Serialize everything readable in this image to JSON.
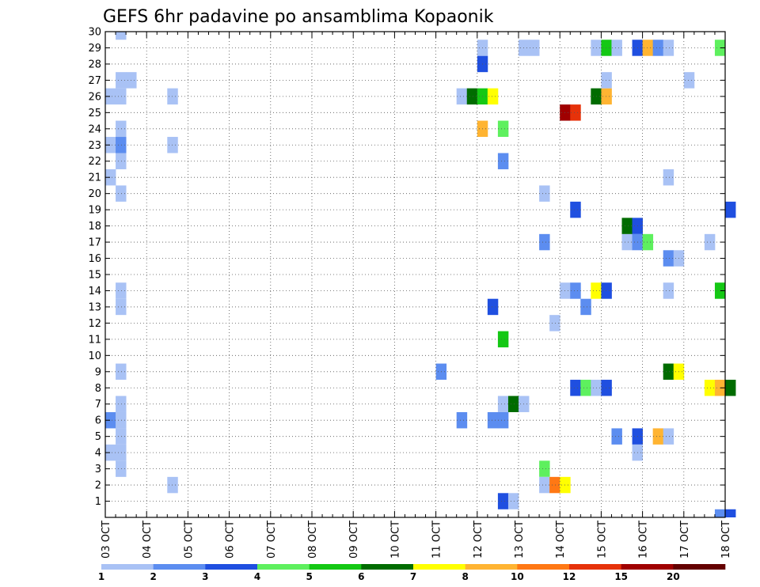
{
  "chart_data": {
    "type": "heatmap",
    "title": "GEFS 6hr padavine po ansamblima Kopaonik",
    "xlabel": "",
    "ylabel": "",
    "x_ticks": [
      "03 OCT",
      "04 OCT",
      "05 OCT",
      "06 OCT",
      "07 OCT",
      "08 OCT",
      "09 OCT",
      "10 OCT",
      "11 OCT",
      "12 OCT",
      "13 OCT",
      "14 OCT",
      "15 OCT",
      "16 OCT",
      "17 OCT",
      "18 OCT"
    ],
    "y_ticks": [
      1,
      2,
      3,
      4,
      5,
      6,
      7,
      8,
      9,
      10,
      11,
      12,
      13,
      14,
      15,
      16,
      17,
      18,
      19,
      20,
      21,
      22,
      23,
      24,
      25,
      26,
      27,
      28,
      29,
      30
    ],
    "time_steps_per_day": 4,
    "grid": true,
    "colorbar": {
      "labels": [
        "1",
        "2",
        "3",
        "4",
        "5",
        "6",
        "7",
        "8",
        "10",
        "12",
        "15",
        "20"
      ],
      "colors": [
        "#a9c2f5",
        "#5c8df0",
        "#1f4fe0",
        "#5ef05e",
        "#14c814",
        "#006c00",
        "#ffff00",
        "#ffb432",
        "#ff7814",
        "#e6320a",
        "#a00000",
        "#640000"
      ]
    },
    "cells": [
      {
        "t": 1,
        "m": 30,
        "v": 1
      },
      {
        "t": 1,
        "m": 27,
        "v": 1
      },
      {
        "t": 2,
        "m": 27,
        "v": 1
      },
      {
        "t": 0,
        "m": 26,
        "v": 1
      },
      {
        "t": 1,
        "m": 26,
        "v": 1
      },
      {
        "t": 1,
        "m": 24,
        "v": 1
      },
      {
        "t": 0,
        "m": 23,
        "v": 1
      },
      {
        "t": 1,
        "m": 23,
        "v": 2
      },
      {
        "t": 1,
        "m": 22,
        "v": 1
      },
      {
        "t": 0,
        "m": 21,
        "v": 1
      },
      {
        "t": 1,
        "m": 20,
        "v": 1
      },
      {
        "t": 1,
        "m": 14,
        "v": 1
      },
      {
        "t": 1,
        "m": 13,
        "v": 1
      },
      {
        "t": 1,
        "m": 9,
        "v": 1
      },
      {
        "t": 1,
        "m": 7,
        "v": 1
      },
      {
        "t": 0,
        "m": 6,
        "v": 2
      },
      {
        "t": 1,
        "m": 6,
        "v": 1
      },
      {
        "t": 1,
        "m": 5,
        "v": 1
      },
      {
        "t": 0,
        "m": 4,
        "v": 1
      },
      {
        "t": 1,
        "m": 4,
        "v": 1
      },
      {
        "t": 1,
        "m": 3,
        "v": 1
      },
      {
        "t": 6,
        "m": 26,
        "v": 1
      },
      {
        "t": 6,
        "m": 23,
        "v": 1
      },
      {
        "t": 6,
        "m": 2,
        "v": 1
      },
      {
        "t": 32,
        "m": 9,
        "v": 2
      },
      {
        "t": 34,
        "m": 26,
        "v": 1
      },
      {
        "t": 35,
        "m": 26,
        "v": 6
      },
      {
        "t": 36,
        "m": 26,
        "v": 5
      },
      {
        "t": 37,
        "m": 26,
        "v": 7
      },
      {
        "t": 36,
        "m": 29,
        "v": 1
      },
      {
        "t": 36,
        "m": 28,
        "v": 3
      },
      {
        "t": 36,
        "m": 24,
        "v": 8
      },
      {
        "t": 38,
        "m": 24,
        "v": 4
      },
      {
        "t": 38,
        "m": 22,
        "v": 2
      },
      {
        "t": 38,
        "m": 11,
        "v": 5
      },
      {
        "t": 37,
        "m": 13,
        "v": 3
      },
      {
        "t": 34,
        "m": 6,
        "v": 2
      },
      {
        "t": 37,
        "m": 6,
        "v": 2
      },
      {
        "t": 38,
        "m": 6,
        "v": 2
      },
      {
        "t": 38,
        "m": 7,
        "v": 1
      },
      {
        "t": 39,
        "m": 7,
        "v": 6
      },
      {
        "t": 40,
        "m": 7,
        "v": 1
      },
      {
        "t": 38,
        "m": 1,
        "v": 3
      },
      {
        "t": 39,
        "m": 1,
        "v": 1
      },
      {
        "t": 40,
        "m": 29,
        "v": 1
      },
      {
        "t": 41,
        "m": 29,
        "v": 1
      },
      {
        "t": 42,
        "m": 20,
        "v": 1
      },
      {
        "t": 42,
        "m": 17,
        "v": 2
      },
      {
        "t": 42,
        "m": 3,
        "v": 4
      },
      {
        "t": 42,
        "m": 2,
        "v": 1
      },
      {
        "t": 43,
        "m": 2,
        "v": 10
      },
      {
        "t": 44,
        "m": 2,
        "v": 7
      },
      {
        "t": 43,
        "m": 12,
        "v": 1
      },
      {
        "t": 44,
        "m": 25,
        "v": 15
      },
      {
        "t": 45,
        "m": 25,
        "v": 12
      },
      {
        "t": 44,
        "m": 14,
        "v": 1
      },
      {
        "t": 45,
        "m": 14,
        "v": 2
      },
      {
        "t": 45,
        "m": 19,
        "v": 3
      },
      {
        "t": 45,
        "m": 8,
        "v": 3
      },
      {
        "t": 46,
        "m": 8,
        "v": 4
      },
      {
        "t": 47,
        "m": 8,
        "v": 1
      },
      {
        "t": 48,
        "m": 8,
        "v": 3
      },
      {
        "t": 46,
        "m": 13,
        "v": 2
      },
      {
        "t": 47,
        "m": 29,
        "v": 1
      },
      {
        "t": 48,
        "m": 29,
        "v": 5
      },
      {
        "t": 49,
        "m": 29,
        "v": 1
      },
      {
        "t": 47,
        "m": 26,
        "v": 6
      },
      {
        "t": 48,
        "m": 26,
        "v": 8
      },
      {
        "t": 47,
        "m": 14,
        "v": 7
      },
      {
        "t": 48,
        "m": 14,
        "v": 3
      },
      {
        "t": 48,
        "m": 27,
        "v": 1
      },
      {
        "t": 49,
        "m": 5,
        "v": 2
      },
      {
        "t": 50,
        "m": 17,
        "v": 1
      },
      {
        "t": 51,
        "m": 17,
        "v": 2
      },
      {
        "t": 52,
        "m": 17,
        "v": 4
      },
      {
        "t": 50,
        "m": 18,
        "v": 6
      },
      {
        "t": 51,
        "m": 18,
        "v": 3
      },
      {
        "t": 51,
        "m": 29,
        "v": 3
      },
      {
        "t": 52,
        "m": 29,
        "v": 8
      },
      {
        "t": 53,
        "m": 29,
        "v": 2
      },
      {
        "t": 54,
        "m": 29,
        "v": 1
      },
      {
        "t": 51,
        "m": 5,
        "v": 3
      },
      {
        "t": 51,
        "m": 4,
        "v": 1
      },
      {
        "t": 53,
        "m": 5,
        "v": 8
      },
      {
        "t": 54,
        "m": 5,
        "v": 1
      },
      {
        "t": 54,
        "m": 16,
        "v": 2
      },
      {
        "t": 55,
        "m": 16,
        "v": 1
      },
      {
        "t": 54,
        "m": 14,
        "v": 1
      },
      {
        "t": 54,
        "m": 9,
        "v": 6
      },
      {
        "t": 55,
        "m": 9,
        "v": 7
      },
      {
        "t": 54,
        "m": 21,
        "v": 1
      },
      {
        "t": 56,
        "m": 27,
        "v": 1
      },
      {
        "t": 58,
        "m": 17,
        "v": 1
      },
      {
        "t": 58,
        "m": 8,
        "v": 7
      },
      {
        "t": 59,
        "m": 8,
        "v": 8
      },
      {
        "t": 60,
        "m": 8,
        "v": 6
      },
      {
        "t": 59,
        "m": 29,
        "v": 4
      },
      {
        "t": 59,
        "m": 14,
        "v": 5
      },
      {
        "t": 59,
        "m": 0,
        "v": 2
      },
      {
        "t": 60,
        "m": 0,
        "v": 3
      },
      {
        "t": 60,
        "m": 19,
        "v": 3
      }
    ]
  }
}
